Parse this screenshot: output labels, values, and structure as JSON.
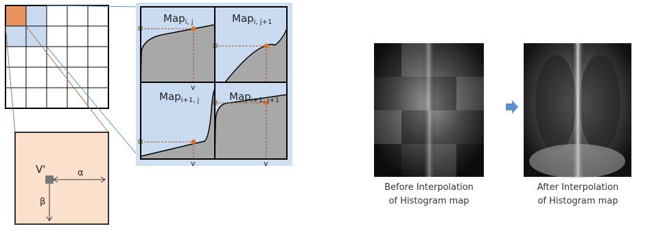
{
  "maps": [
    {
      "label": "Map",
      "subscript": "i, j"
    },
    {
      "label": "Map",
      "subscript": "i, j+1"
    },
    {
      "label": "Map",
      "subscript": "i+1, j"
    },
    {
      "label": "Map",
      "subscript": "i+1, j+1"
    }
  ],
  "axis_labels": [
    "v",
    "v",
    "v"
  ],
  "tile": {
    "point": "V'",
    "alpha": "α",
    "beta": "β"
  },
  "images": [
    {
      "caption": [
        "Before Interpolation",
        "of Histogram map"
      ]
    },
    {
      "caption": [
        "After Interpolation",
        "of Histogram map"
      ]
    }
  ]
}
